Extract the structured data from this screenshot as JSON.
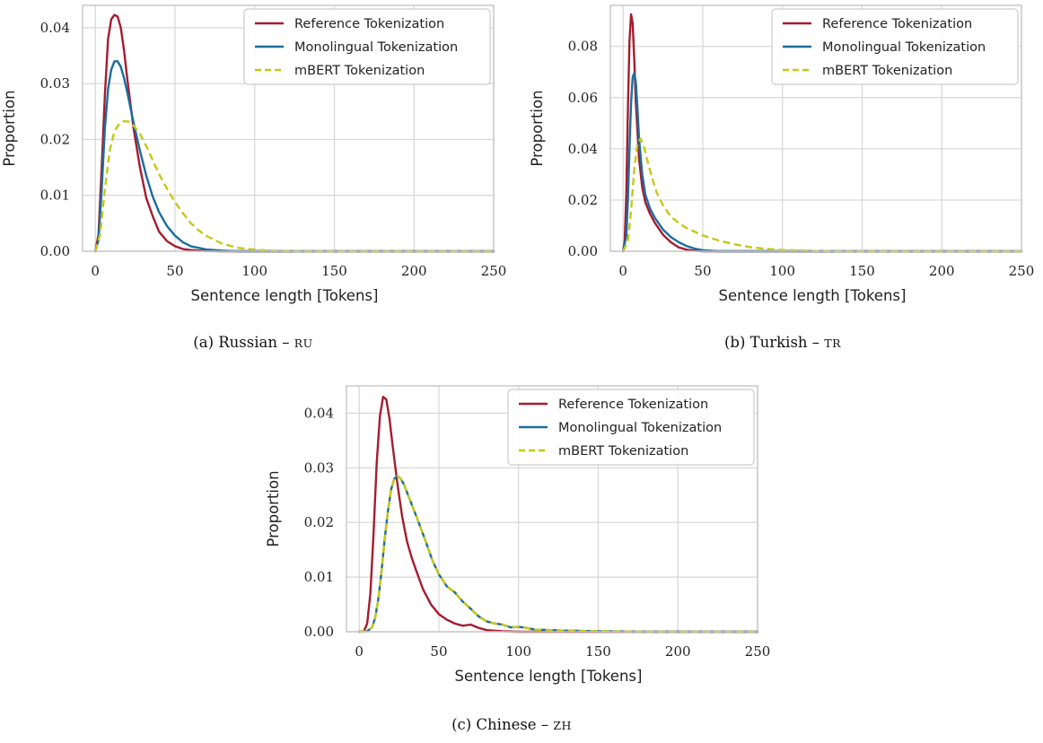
{
  "chart_data": [
    {
      "type": "line",
      "caption": {
        "prefix": "(a) Russian – ",
        "code": "RU"
      },
      "xlabel": "Sentence length [Tokens]",
      "ylabel": "Proportion",
      "xlim": [
        -8,
        250
      ],
      "ylim": [
        0,
        0.044
      ],
      "xticks": [
        0,
        50,
        100,
        150,
        200,
        250
      ],
      "yticks": [
        0,
        0.01,
        0.02,
        0.03,
        0.04
      ],
      "ytick_labels": [
        "0.00",
        "0.01",
        "0.02",
        "0.03",
        "0.04"
      ],
      "grid": true,
      "legend_position": "top-right",
      "series": [
        {
          "name": "Reference Tokenization",
          "color": "#A51C30",
          "dash": "solid",
          "x": [
            0,
            2,
            4,
            6,
            8,
            10,
            12,
            14,
            16,
            18,
            20,
            24,
            28,
            32,
            36,
            40,
            45,
            50,
            55,
            60,
            70,
            80,
            250
          ],
          "y": [
            0,
            0.003,
            0.015,
            0.028,
            0.038,
            0.0415,
            0.0423,
            0.042,
            0.04,
            0.036,
            0.031,
            0.022,
            0.015,
            0.0095,
            0.0063,
            0.0035,
            0.0018,
            0.0009,
            0.0004,
            0.0002,
            5e-05,
            0,
            0
          ]
        },
        {
          "name": "Monolingual Tokenization",
          "color": "#1A6E9C",
          "dash": "solid",
          "x": [
            0,
            2,
            4,
            6,
            8,
            10,
            12,
            14,
            16,
            18,
            20,
            24,
            28,
            32,
            36,
            40,
            45,
            50,
            55,
            60,
            70,
            80,
            90,
            250
          ],
          "y": [
            0,
            0.002,
            0.011,
            0.022,
            0.029,
            0.0325,
            0.034,
            0.034,
            0.033,
            0.031,
            0.0285,
            0.023,
            0.018,
            0.0135,
            0.0098,
            0.007,
            0.0045,
            0.0028,
            0.0016,
            0.0009,
            0.0003,
            0.0001,
            0,
            0
          ]
        },
        {
          "name": "mBERT Tokenization",
          "color": "#C4C816",
          "dash": "dashed",
          "x": [
            0,
            3,
            6,
            9,
            12,
            15,
            18,
            21,
            24,
            28,
            32,
            36,
            40,
            45,
            50,
            55,
            60,
            65,
            70,
            80,
            90,
            100,
            110,
            130,
            250
          ],
          "y": [
            0,
            0.003,
            0.011,
            0.018,
            0.0215,
            0.0228,
            0.0233,
            0.0232,
            0.0225,
            0.021,
            0.0188,
            0.0163,
            0.0138,
            0.0112,
            0.0088,
            0.0068,
            0.005,
            0.0037,
            0.0027,
            0.0013,
            0.0006,
            0.0003,
            0.0001,
            0,
            0
          ]
        }
      ]
    },
    {
      "type": "line",
      "caption": {
        "prefix": "(b) Turkish – ",
        "code": "TR"
      },
      "xlabel": "Sentence length [Tokens]",
      "ylabel": "Proportion",
      "xlim": [
        -8,
        250
      ],
      "ylim": [
        0,
        0.096
      ],
      "xticks": [
        0,
        50,
        100,
        150,
        200,
        250
      ],
      "yticks": [
        0,
        0.02,
        0.04,
        0.06,
        0.08
      ],
      "ytick_labels": [
        "0.00",
        "0.02",
        "0.04",
        "0.06",
        "0.08"
      ],
      "grid": true,
      "legend_position": "top-right",
      "series": [
        {
          "name": "Reference Tokenization",
          "color": "#A51C30",
          "dash": "solid",
          "x": [
            0,
            1,
            2,
            3,
            4,
            5,
            6,
            7,
            8,
            10,
            12,
            14,
            17,
            20,
            25,
            30,
            35,
            40,
            45,
            50,
            250
          ],
          "y": [
            0,
            0.004,
            0.022,
            0.055,
            0.082,
            0.0925,
            0.089,
            0.075,
            0.058,
            0.036,
            0.025,
            0.019,
            0.0145,
            0.011,
            0.0065,
            0.0035,
            0.0015,
            0.0006,
            0.0002,
            0,
            0
          ]
        },
        {
          "name": "Monolingual Tokenization",
          "color": "#1A6E9C",
          "dash": "solid",
          "x": [
            0,
            2,
            3,
            4,
            5,
            6,
            7,
            8,
            9,
            10,
            12,
            14,
            17,
            20,
            25,
            30,
            35,
            40,
            45,
            50,
            60,
            250
          ],
          "y": [
            0,
            0.006,
            0.02,
            0.04,
            0.058,
            0.068,
            0.0695,
            0.066,
            0.056,
            0.044,
            0.03,
            0.022,
            0.0165,
            0.013,
            0.0085,
            0.0055,
            0.0035,
            0.002,
            0.001,
            0.0004,
            0,
            0
          ]
        },
        {
          "name": "mBERT Tokenization",
          "color": "#C4C816",
          "dash": "dashed",
          "x": [
            0,
            3,
            5,
            7,
            9,
            11,
            13,
            15,
            18,
            21,
            25,
            30,
            35,
            40,
            50,
            60,
            70,
            80,
            90,
            100,
            110,
            120,
            140,
            250
          ],
          "y": [
            0,
            0.004,
            0.016,
            0.032,
            0.042,
            0.044,
            0.041,
            0.036,
            0.029,
            0.023,
            0.018,
            0.0135,
            0.011,
            0.009,
            0.0062,
            0.0042,
            0.0027,
            0.0016,
            0.0009,
            0.0005,
            0.0003,
            0.0001,
            0,
            0
          ]
        }
      ]
    },
    {
      "type": "line",
      "caption": {
        "prefix": "(c) Chinese – ",
        "code": "ZH"
      },
      "xlabel": "Sentence length [Tokens]",
      "ylabel": "Proportion",
      "xlim": [
        -8,
        250
      ],
      "ylim": [
        0,
        0.045
      ],
      "xticks": [
        0,
        50,
        100,
        150,
        200,
        250
      ],
      "yticks": [
        0,
        0.01,
        0.02,
        0.03,
        0.04
      ],
      "ytick_labels": [
        "0.00",
        "0.01",
        "0.02",
        "0.03",
        "0.04"
      ],
      "grid": true,
      "legend_position": "top-right",
      "series": [
        {
          "name": "Reference Tokenization",
          "color": "#A51C30",
          "dash": "solid",
          "x": [
            0,
            3,
            5,
            7,
            9,
            11,
            13,
            15,
            17,
            19,
            21,
            24,
            27,
            30,
            33,
            36,
            40,
            45,
            50,
            55,
            60,
            65,
            70,
            75,
            80,
            90,
            100,
            250
          ],
          "y": [
            0,
            0.0001,
            0.0015,
            0.007,
            0.018,
            0.031,
            0.0395,
            0.043,
            0.0425,
            0.039,
            0.034,
            0.027,
            0.021,
            0.0165,
            0.0135,
            0.011,
            0.0078,
            0.005,
            0.0032,
            0.0022,
            0.0015,
            0.0011,
            0.0013,
            0.0007,
            0.0003,
            0.0001,
            0,
            0
          ]
        },
        {
          "name": "Monolingual Tokenization",
          "color": "#1A6E9C",
          "dash": "solid",
          "x": [
            0,
            5,
            8,
            10,
            12,
            14,
            16,
            18,
            20,
            22,
            24,
            26,
            28,
            30,
            34,
            38,
            42,
            46,
            50,
            55,
            60,
            65,
            70,
            75,
            80,
            85,
            90,
            95,
            100,
            105,
            110,
            120,
            130,
            150,
            170,
            180,
            250
          ],
          "y": [
            0,
            0.0001,
            0.0008,
            0.0025,
            0.006,
            0.011,
            0.017,
            0.022,
            0.026,
            0.028,
            0.0285,
            0.028,
            0.027,
            0.0255,
            0.0225,
            0.0195,
            0.0163,
            0.013,
            0.0105,
            0.0083,
            0.0072,
            0.0055,
            0.0042,
            0.0028,
            0.0019,
            0.0015,
            0.0013,
            0.0008,
            0.0009,
            0.0007,
            0.0004,
            0.0003,
            0.0002,
            0.0001,
            5e-05,
            0,
            0
          ]
        },
        {
          "name": "mBERT Tokenization",
          "color": "#C4C816",
          "dash": "dashed",
          "x": [
            0,
            5,
            8,
            10,
            12,
            14,
            16,
            18,
            20,
            22,
            24,
            26,
            28,
            30,
            34,
            38,
            42,
            46,
            50,
            55,
            60,
            65,
            70,
            75,
            80,
            85,
            90,
            95,
            100,
            105,
            110,
            120,
            130,
            150,
            170,
            180,
            250
          ],
          "y": [
            0,
            0.0001,
            0.0008,
            0.0025,
            0.006,
            0.011,
            0.017,
            0.022,
            0.026,
            0.028,
            0.0285,
            0.028,
            0.027,
            0.0255,
            0.0225,
            0.0195,
            0.0163,
            0.013,
            0.0105,
            0.0083,
            0.0072,
            0.0055,
            0.0042,
            0.0028,
            0.0019,
            0.0015,
            0.0013,
            0.0008,
            0.0009,
            0.0007,
            0.0004,
            0.0003,
            0.0002,
            0.0001,
            5e-05,
            0,
            0
          ]
        }
      ]
    }
  ]
}
